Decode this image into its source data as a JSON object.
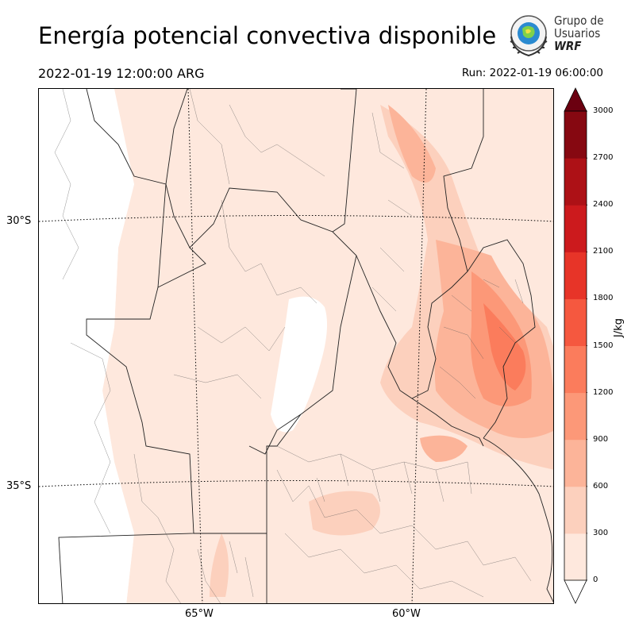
{
  "header": {
    "title": "Energía potencial convectiva disponible",
    "valid_time": "2022-01-19 12:00:00 ARG",
    "run_time": "Run: 2022-01-19 06:00:00"
  },
  "logo": {
    "line1": "Grupo de",
    "line2": "Usuarios",
    "line3": "WRF"
  },
  "map": {
    "lat_labels": [
      "30°S",
      "35°S"
    ],
    "lon_labels": [
      "65°W",
      "60°W"
    ]
  },
  "colorbar": {
    "unit": "J/kg",
    "ticks": [
      "0",
      "300",
      "600",
      "900",
      "1200",
      "1500",
      "1800",
      "2100",
      "2400",
      "2700",
      "3000"
    ],
    "colors": [
      "#fee8dd",
      "#fcd0bd",
      "#fcb499",
      "#fc9878",
      "#fb7c5c",
      "#f5583f",
      "#e73428",
      "#cc1a1d",
      "#ad1116",
      "#860811"
    ],
    "extend_color": "#6b0010"
  }
}
